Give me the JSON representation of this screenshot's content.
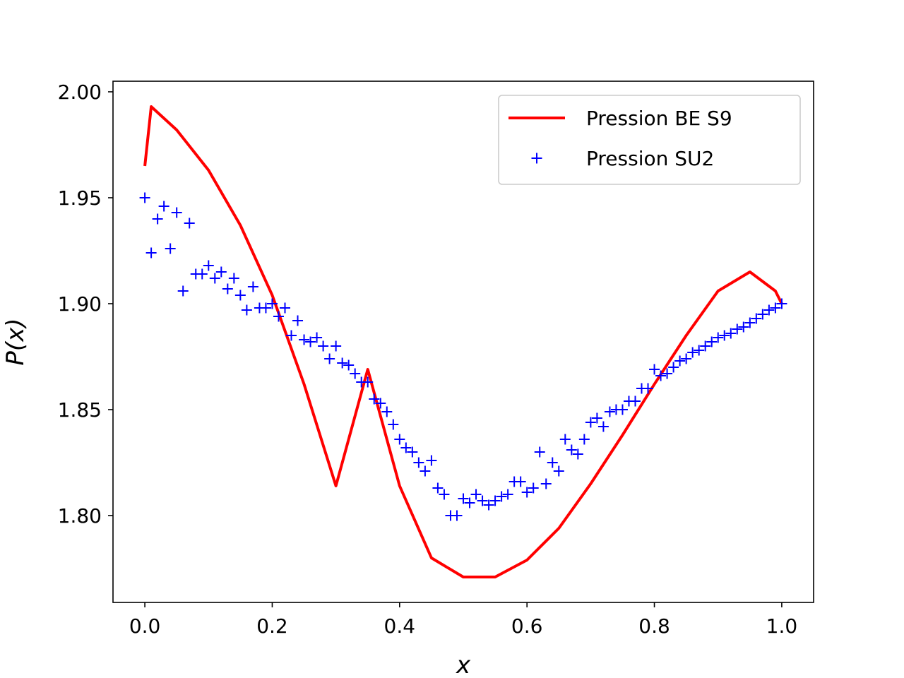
{
  "chart_data": {
    "type": "line",
    "xlabel": "x",
    "ylabel": "P(x)",
    "xlim": [
      -0.05,
      1.05
    ],
    "ylim": [
      1.759,
      2.005
    ],
    "x_ticks": [
      0.0,
      0.2,
      0.4,
      0.6,
      0.8,
      1.0
    ],
    "x_tick_labels": [
      "0.0",
      "0.2",
      "0.4",
      "0.6",
      "0.8",
      "1.0"
    ],
    "y_ticks": [
      1.8,
      1.85,
      1.9,
      1.95,
      2.0
    ],
    "y_tick_labels": [
      "1.80",
      "1.85",
      "1.90",
      "1.95",
      "2.00"
    ],
    "grid": false,
    "legend_position": "top-right",
    "series": [
      {
        "name": "Pression BE S9",
        "style": "line",
        "color": "#ff0000",
        "x": [
          0.0,
          0.01,
          0.05,
          0.1,
          0.15,
          0.2,
          0.25,
          0.3,
          0.35,
          0.4,
          0.45,
          0.5,
          0.55,
          0.6,
          0.65,
          0.7,
          0.75,
          0.8,
          0.85,
          0.9,
          0.95,
          0.99,
          1.0
        ],
        "y": [
          1.965,
          1.993,
          1.982,
          1.963,
          1.937,
          1.904,
          1.862,
          1.814,
          1.869,
          1.814,
          1.78,
          1.771,
          1.771,
          1.779,
          1.794,
          1.815,
          1.838,
          1.862,
          1.885,
          1.906,
          1.915,
          1.906,
          1.9
        ]
      },
      {
        "name": "Pression SU2",
        "style": "marker",
        "marker": "+",
        "color": "#0000ff",
        "x": [
          0.0,
          0.01,
          0.02,
          0.03,
          0.04,
          0.05,
          0.06,
          0.07,
          0.08,
          0.09,
          0.1,
          0.11,
          0.12,
          0.13,
          0.14,
          0.15,
          0.16,
          0.17,
          0.18,
          0.19,
          0.2,
          0.21,
          0.22,
          0.23,
          0.24,
          0.25,
          0.26,
          0.27,
          0.28,
          0.29,
          0.3,
          0.31,
          0.32,
          0.33,
          0.34,
          0.35,
          0.36,
          0.37,
          0.38,
          0.39,
          0.4,
          0.41,
          0.42,
          0.43,
          0.44,
          0.45,
          0.46,
          0.47,
          0.48,
          0.49,
          0.5,
          0.51,
          0.52,
          0.53,
          0.54,
          0.55,
          0.56,
          0.57,
          0.58,
          0.59,
          0.6,
          0.61,
          0.62,
          0.63,
          0.64,
          0.65,
          0.66,
          0.67,
          0.68,
          0.69,
          0.7,
          0.71,
          0.72,
          0.73,
          0.74,
          0.75,
          0.76,
          0.77,
          0.78,
          0.79,
          0.8,
          0.81,
          0.82,
          0.83,
          0.84,
          0.85,
          0.86,
          0.87,
          0.88,
          0.89,
          0.9,
          0.91,
          0.92,
          0.93,
          0.94,
          0.95,
          0.96,
          0.97,
          0.98,
          0.99,
          1.0
        ],
        "y": [
          1.95,
          1.924,
          1.94,
          1.946,
          1.926,
          1.943,
          1.906,
          1.938,
          1.914,
          1.914,
          1.918,
          1.912,
          1.915,
          1.907,
          1.912,
          1.904,
          1.897,
          1.908,
          1.898,
          1.898,
          1.9,
          1.894,
          1.898,
          1.885,
          1.892,
          1.883,
          1.882,
          1.884,
          1.88,
          1.874,
          1.88,
          1.872,
          1.871,
          1.867,
          1.863,
          1.863,
          1.855,
          1.853,
          1.849,
          1.843,
          1.836,
          1.832,
          1.83,
          1.825,
          1.821,
          1.826,
          1.813,
          1.81,
          1.8,
          1.8,
          1.808,
          1.806,
          1.81,
          1.807,
          1.805,
          1.807,
          1.809,
          1.81,
          1.816,
          1.816,
          1.811,
          1.813,
          1.83,
          1.815,
          1.825,
          1.821,
          1.836,
          1.831,
          1.829,
          1.836,
          1.844,
          1.846,
          1.842,
          1.849,
          1.85,
          1.85,
          1.854,
          1.854,
          1.86,
          1.86,
          1.869,
          1.866,
          1.867,
          1.87,
          1.873,
          1.874,
          1.877,
          1.878,
          1.88,
          1.882,
          1.884,
          1.885,
          1.886,
          1.888,
          1.889,
          1.891,
          1.893,
          1.895,
          1.897,
          1.898,
          1.9
        ]
      }
    ]
  }
}
